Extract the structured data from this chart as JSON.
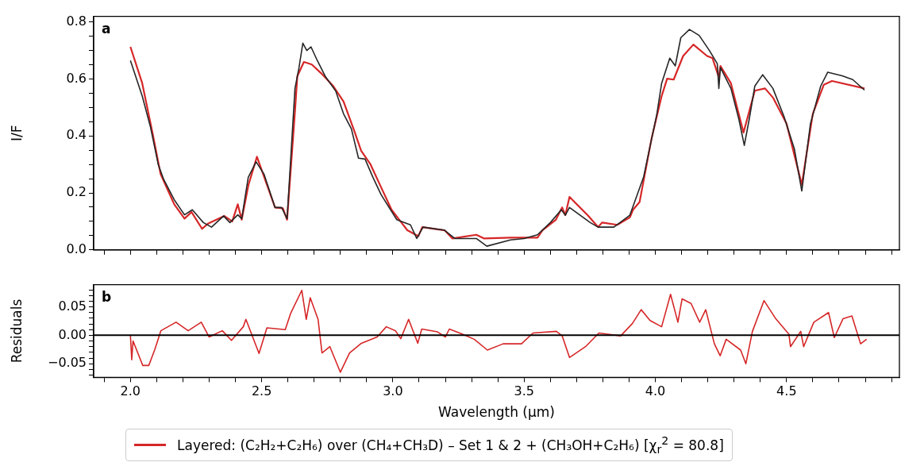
{
  "chart_data": [
    {
      "type": "line",
      "ylabel": "I/F",
      "annotations": [
        "a"
      ],
      "legend": "bottom",
      "marker": "none",
      "line_style": "solid",
      "tick_labels": "y",
      "grid": false,
      "xlim": [
        1.86,
        4.93
      ],
      "ylim": [
        0,
        0.82
      ],
      "xticks": [
        {
          "value": 1.9,
          "label": null
        },
        {
          "value": 2,
          "label": null
        },
        {
          "value": 2.1,
          "label": null
        },
        {
          "value": 2.2,
          "label": null
        },
        {
          "value": 2.3,
          "label": null
        },
        {
          "value": 2.4,
          "label": null
        },
        {
          "value": 2.5,
          "label": null
        },
        {
          "value": 2.6,
          "label": null
        },
        {
          "value": 2.7,
          "label": null
        },
        {
          "value": 2.8,
          "label": null
        },
        {
          "value": 2.9,
          "label": null
        },
        {
          "value": 3,
          "label": null
        },
        {
          "value": 3.1,
          "label": null
        },
        {
          "value": 3.2,
          "label": null
        },
        {
          "value": 3.3,
          "label": null
        },
        {
          "value": 3.4,
          "label": null
        },
        {
          "value": 3.5,
          "label": null
        },
        {
          "value": 3.6,
          "label": null
        },
        {
          "value": 3.7,
          "label": null
        },
        {
          "value": 3.8,
          "label": null
        },
        {
          "value": 3.9,
          "label": null
        },
        {
          "value": 4,
          "label": null
        },
        {
          "value": 4.1,
          "label": null
        },
        {
          "value": 4.2,
          "label": null
        },
        {
          "value": 4.3,
          "label": null
        },
        {
          "value": 4.4,
          "label": null
        },
        {
          "value": 4.5,
          "label": null
        },
        {
          "value": 4.6,
          "label": null
        },
        {
          "value": 4.7,
          "label": null
        },
        {
          "value": 4.8,
          "label": null
        },
        {
          "value": 4.9,
          "label": null
        }
      ],
      "yticks": [
        {
          "value": 0,
          "label": "0.0"
        },
        {
          "value": 0.05,
          "label": null
        },
        {
          "value": 0.1,
          "label": null
        },
        {
          "value": 0.15,
          "label": null
        },
        {
          "value": 0.2,
          "label": "0.2"
        },
        {
          "value": 0.25,
          "label": null
        },
        {
          "value": 0.3,
          "label": null
        },
        {
          "value": 0.35,
          "label": null
        },
        {
          "value": 0.4,
          "label": "0.4"
        },
        {
          "value": 0.45,
          "label": null
        },
        {
          "value": 0.5,
          "label": null
        },
        {
          "value": 0.55,
          "label": null
        },
        {
          "value": 0.6,
          "label": "0.6"
        },
        {
          "value": 0.65,
          "label": null
        },
        {
          "value": 0.7,
          "label": null
        },
        {
          "value": 0.75,
          "label": null
        },
        {
          "value": 0.8,
          "label": "0.8"
        }
      ],
      "series": [
        {
          "type": "line",
          "color": "#262626",
          "x": [
            2.0,
            2.045,
            2.076,
            2.106,
            2.127,
            2.167,
            2.206,
            2.236,
            2.278,
            2.309,
            2.355,
            2.379,
            2.409,
            2.424,
            2.449,
            2.479,
            2.509,
            2.551,
            2.576,
            2.597,
            2.627,
            2.642,
            2.657,
            2.672,
            2.688,
            2.712,
            2.742,
            2.782,
            2.812,
            2.842,
            2.869,
            2.894,
            2.924,
            2.955,
            3.015,
            3.067,
            3.091,
            3.115,
            3.197,
            3.236,
            3.318,
            3.358,
            3.448,
            3.5,
            3.551,
            3.6,
            3.642,
            3.657,
            3.673,
            3.752,
            3.782,
            3.842,
            3.903,
            3.955,
            4.006,
            4.024,
            4.055,
            4.076,
            4.097,
            4.13,
            4.167,
            4.206,
            4.236,
            4.242,
            4.248,
            4.288,
            4.318,
            4.339,
            4.358,
            4.379,
            4.409,
            4.448,
            4.49,
            4.53,
            4.558,
            4.591,
            4.63,
            4.657,
            4.712,
            4.752,
            4.797
          ],
          "values": [
            0.665,
            0.54,
            0.433,
            0.3,
            0.247,
            0.176,
            0.123,
            0.141,
            0.096,
            0.08,
            0.119,
            0.096,
            0.123,
            0.11,
            0.255,
            0.309,
            0.266,
            0.149,
            0.149,
            0.11,
            0.567,
            0.638,
            0.726,
            0.7,
            0.713,
            0.665,
            0.61,
            0.558,
            0.478,
            0.425,
            0.322,
            0.319,
            0.255,
            0.194,
            0.106,
            0.088,
            0.04,
            0.08,
            0.069,
            0.04,
            0.04,
            0.013,
            0.035,
            0.04,
            0.053,
            0.096,
            0.141,
            0.122,
            0.149,
            0.096,
            0.08,
            0.08,
            0.122,
            0.255,
            0.478,
            0.585,
            0.673,
            0.646,
            0.745,
            0.774,
            0.753,
            0.7,
            0.654,
            0.567,
            0.64,
            0.567,
            0.46,
            0.367,
            0.46,
            0.575,
            0.615,
            0.567,
            0.469,
            0.354,
            0.207,
            0.443,
            0.575,
            0.624,
            0.611,
            0.598,
            0.561
          ]
        },
        {
          "type": "line",
          "name": "Layered: (C₂H₂+C₂H₆) over (CH₄+CH₃D) – Set 1 & 2 + (CH₃OH+C₂H₆)  [χ$_{r}$$^{2}$ = 80.8]",
          "color": "#d62728",
          "x": [
            2.0,
            2.045,
            2.085,
            2.115,
            2.167,
            2.206,
            2.233,
            2.273,
            2.297,
            2.358,
            2.388,
            2.409,
            2.424,
            2.45,
            2.482,
            2.52,
            2.551,
            2.581,
            2.597,
            2.627,
            2.636,
            2.661,
            2.691,
            2.727,
            2.773,
            2.812,
            2.854,
            2.879,
            2.915,
            2.955,
            2.995,
            3.055,
            3.097,
            3.112,
            3.197,
            3.227,
            3.318,
            3.348,
            3.448,
            3.551,
            3.57,
            3.621,
            3.645,
            3.657,
            3.673,
            3.742,
            3.782,
            3.797,
            3.855,
            3.903,
            3.915,
            3.94,
            3.985,
            4.024,
            4.045,
            4.07,
            4.106,
            4.145,
            4.197,
            4.218,
            4.242,
            4.248,
            4.288,
            4.336,
            4.379,
            4.418,
            4.448,
            4.5,
            4.558,
            4.6,
            4.642,
            4.673,
            4.797
          ],
          "values": [
            0.713,
            0.585,
            0.407,
            0.266,
            0.16,
            0.11,
            0.133,
            0.074,
            0.093,
            0.119,
            0.1,
            0.16,
            0.106,
            0.229,
            0.327,
            0.229,
            0.149,
            0.146,
            0.106,
            0.487,
            0.61,
            0.66,
            0.651,
            0.62,
            0.575,
            0.521,
            0.415,
            0.348,
            0.3,
            0.22,
            0.141,
            0.069,
            0.048,
            0.08,
            0.069,
            0.04,
            0.053,
            0.04,
            0.043,
            0.043,
            0.069,
            0.106,
            0.149,
            0.122,
            0.186,
            0.122,
            0.08,
            0.096,
            0.088,
            0.114,
            0.141,
            0.168,
            0.388,
            0.54,
            0.601,
            0.598,
            0.681,
            0.721,
            0.681,
            0.673,
            0.606,
            0.646,
            0.585,
            0.412,
            0.559,
            0.567,
            0.535,
            0.443,
            0.229,
            0.478,
            0.58,
            0.593,
            0.567
          ]
        }
      ]
    },
    {
      "type": "line",
      "ylabel": "Residuals",
      "xlabel": "Wavelength (µm)",
      "annotations": [
        "b"
      ],
      "marker": "none",
      "line_style": "solid",
      "grid": false,
      "xlim": [
        1.86,
        4.93
      ],
      "ylim": [
        -0.074,
        0.089
      ],
      "xticks": [
        {
          "value": 1.9,
          "label": null
        },
        {
          "value": 2,
          "label": "2.0"
        },
        {
          "value": 2.1,
          "label": null
        },
        {
          "value": 2.2,
          "label": null
        },
        {
          "value": 2.3,
          "label": null
        },
        {
          "value": 2.4,
          "label": null
        },
        {
          "value": 2.5,
          "label": "2.5"
        },
        {
          "value": 2.6,
          "label": null
        },
        {
          "value": 2.7,
          "label": null
        },
        {
          "value": 2.8,
          "label": null
        },
        {
          "value": 2.9,
          "label": null
        },
        {
          "value": 3,
          "label": "3.0"
        },
        {
          "value": 3.1,
          "label": null
        },
        {
          "value": 3.2,
          "label": null
        },
        {
          "value": 3.3,
          "label": null
        },
        {
          "value": 3.4,
          "label": null
        },
        {
          "value": 3.5,
          "label": "3.5"
        },
        {
          "value": 3.6,
          "label": null
        },
        {
          "value": 3.7,
          "label": null
        },
        {
          "value": 3.8,
          "label": null
        },
        {
          "value": 3.9,
          "label": null
        },
        {
          "value": 4,
          "label": "4.0"
        },
        {
          "value": 4.1,
          "label": null
        },
        {
          "value": 4.2,
          "label": null
        },
        {
          "value": 4.3,
          "label": null
        },
        {
          "value": 4.4,
          "label": null
        },
        {
          "value": 4.5,
          "label": "4.5"
        },
        {
          "value": 4.6,
          "label": null
        },
        {
          "value": 4.7,
          "label": null
        },
        {
          "value": 4.8,
          "label": null
        },
        {
          "value": 4.9,
          "label": null
        }
      ],
      "yticks": [
        {
          "value": -0.07,
          "label": null
        },
        {
          "value": -0.06,
          "label": null
        },
        {
          "value": -0.05,
          "label": "−0.05"
        },
        {
          "value": -0.04,
          "label": null
        },
        {
          "value": -0.03,
          "label": null
        },
        {
          "value": -0.02,
          "label": null
        },
        {
          "value": -0.01,
          "label": null
        },
        {
          "value": 0,
          "label": "0.00"
        },
        {
          "value": 0.01,
          "label": null
        },
        {
          "value": 0.02,
          "label": null
        },
        {
          "value": 0.03,
          "label": null
        },
        {
          "value": 0.04,
          "label": null
        },
        {
          "value": 0.05,
          "label": "0.05"
        },
        {
          "value": 0.06,
          "label": null
        },
        {
          "value": 0.07,
          "label": null
        },
        {
          "value": 0.08,
          "label": null
        }
      ],
      "ref_lines": [
        {
          "axis": "y",
          "value": 0,
          "color": "#000000"
        }
      ],
      "series": [
        {
          "type": "line",
          "color": "#d62728",
          "x": [
            2.0,
            2.005,
            2.01,
            2.047,
            2.07,
            2.093,
            2.116,
            2.174,
            2.22,
            2.27,
            2.3,
            2.35,
            2.385,
            2.43,
            2.44,
            2.49,
            2.52,
            2.59,
            2.61,
            2.653,
            2.67,
            2.685,
            2.715,
            2.73,
            2.76,
            2.8,
            2.835,
            2.88,
            2.94,
            2.975,
            3.01,
            3.03,
            3.06,
            3.095,
            3.11,
            3.17,
            3.2,
            3.215,
            3.26,
            3.31,
            3.36,
            3.42,
            3.49,
            3.534,
            3.623,
            3.645,
            3.673,
            3.734,
            3.785,
            3.868,
            3.913,
            3.946,
            3.98,
            4.024,
            4.058,
            4.086,
            4.102,
            4.136,
            4.169,
            4.192,
            4.225,
            4.247,
            4.27,
            4.325,
            4.345,
            4.37,
            4.414,
            4.459,
            4.509,
            4.515,
            4.554,
            4.565,
            4.604,
            4.66,
            4.682,
            4.715,
            4.749,
            4.782,
            4.805
          ],
          "values": [
            0,
            -0.043,
            -0.01,
            -0.053,
            -0.053,
            -0.025,
            0.008,
            0.023,
            0.008,
            0.023,
            -0.003,
            0.008,
            -0.009,
            0.015,
            0.028,
            -0.032,
            0.013,
            0.01,
            0.038,
            0.079,
            0.028,
            0.066,
            0.028,
            -0.031,
            -0.02,
            -0.065,
            -0.031,
            -0.014,
            -0.003,
            0.015,
            0.008,
            -0.006,
            0.028,
            -0.014,
            0.011,
            0.006,
            -0.003,
            0.011,
            0.003,
            -0.007,
            -0.026,
            -0.015,
            -0.015,
            0.004,
            0.007,
            -0.001,
            -0.039,
            -0.02,
            0.004,
            -0.001,
            0.021,
            0.045,
            0.026,
            0.015,
            0.072,
            0.023,
            0.064,
            0.056,
            0.023,
            0.045,
            -0.015,
            -0.036,
            -0.007,
            -0.026,
            -0.05,
            0.007,
            0.061,
            0.029,
            0.002,
            -0.02,
            0.007,
            -0.02,
            0.023,
            0.04,
            -0.004,
            0.029,
            0.034,
            -0.015,
            -0.007
          ]
        }
      ]
    }
  ]
}
